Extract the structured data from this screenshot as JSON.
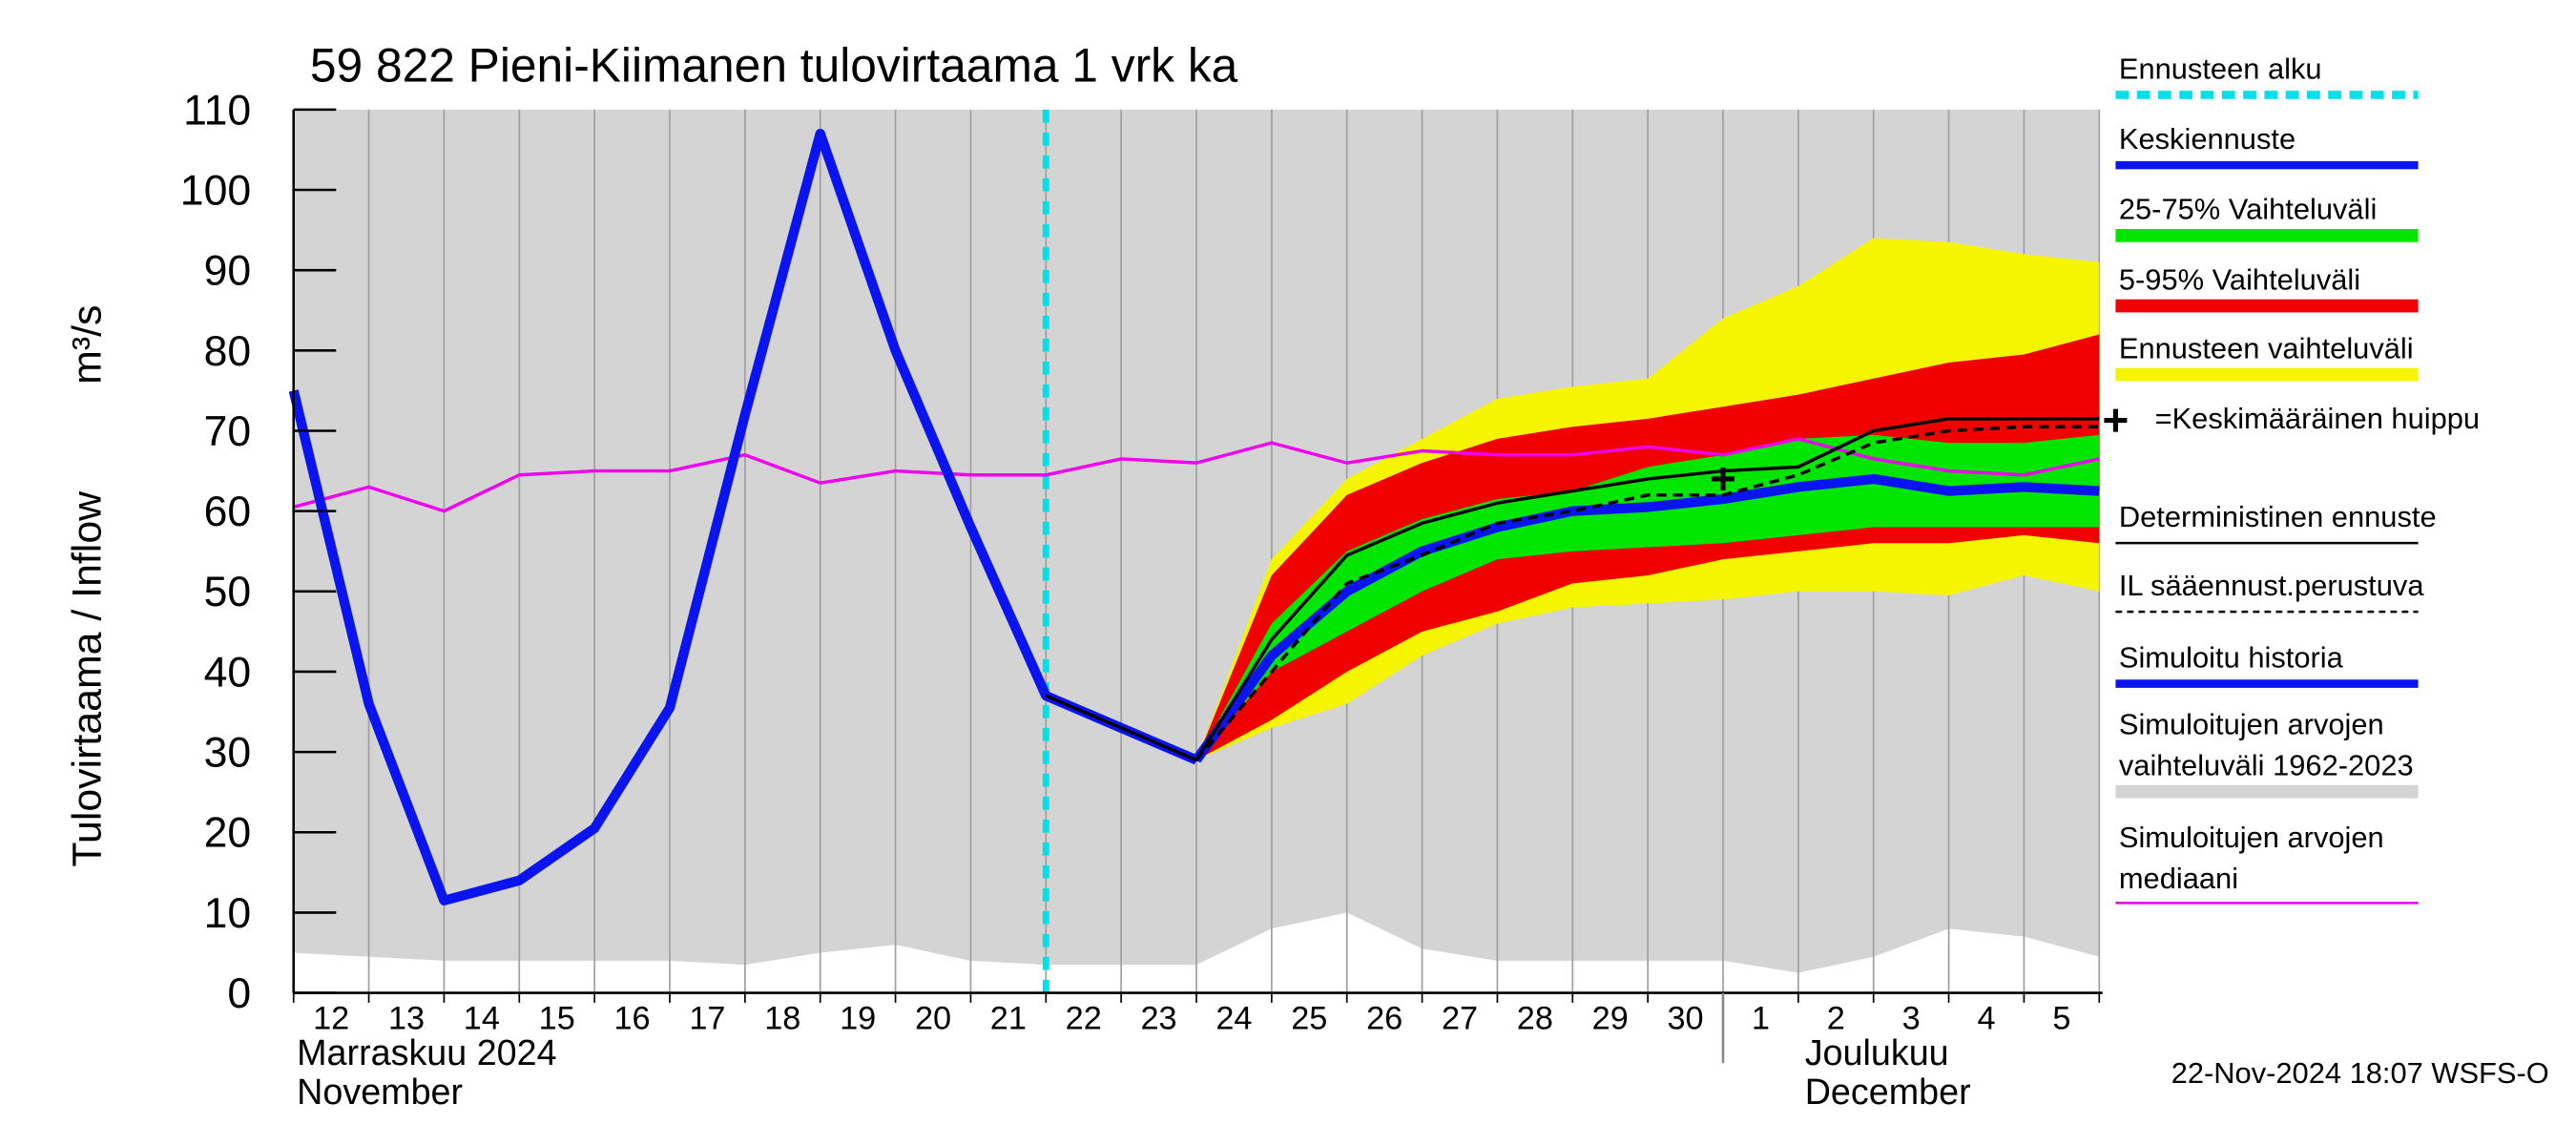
{
  "chart_data": {
    "type": "line",
    "title": "59 822 Pieni-Kiimanen tulovirtaama 1 vrk ka",
    "y_label": "Tulovirtaama / Inflow",
    "y_unit": "m³/s",
    "month_labels": [
      [
        "Marraskuu 2024",
        "November"
      ],
      [
        "Joulukuu",
        "December"
      ]
    ],
    "footer": "22-Nov-2024 18:07 WSFS-O",
    "categories": [
      "12",
      "13",
      "14",
      "15",
      "16",
      "17",
      "18",
      "19",
      "20",
      "21",
      "22",
      "23",
      "24",
      "25",
      "26",
      "27",
      "28",
      "29",
      "30",
      "1",
      "2",
      "3",
      "4",
      "5",
      null
    ],
    "month_start_index": 19,
    "ylim": [
      0,
      110
    ],
    "yticks": [
      0,
      10,
      20,
      30,
      40,
      50,
      60,
      70,
      80,
      90,
      100,
      110
    ],
    "grid": "x",
    "forecast_start": {
      "name": "Ennusteen alku",
      "color": "#00e0e8",
      "x": 10
    },
    "series": [
      {
        "name": "Keskiennuste",
        "kind": "line",
        "color": "#0a14f0",
        "line_width": 6,
        "values": [
          null,
          null,
          null,
          null,
          null,
          null,
          null,
          null,
          null,
          null,
          null,
          null,
          29,
          42,
          50,
          55,
          58,
          60,
          60.5,
          61.5,
          63,
          64,
          62.5,
          63,
          62.5
        ]
      },
      {
        "name": "25-75% Vaihteluväli",
        "kind": "band",
        "color": "#00e600",
        "low": [
          null,
          null,
          null,
          null,
          null,
          null,
          null,
          null,
          null,
          null,
          null,
          null,
          29,
          40,
          45,
          50,
          54,
          55,
          55.5,
          56,
          57,
          58,
          58,
          58,
          58
        ],
        "high": [
          null,
          null,
          null,
          null,
          null,
          null,
          null,
          null,
          null,
          null,
          null,
          null,
          29,
          46,
          55,
          59,
          61.5,
          62.5,
          65.5,
          67,
          69,
          69.5,
          68.5,
          68.5,
          69.5
        ]
      },
      {
        "name": "5-95% Vaihteluväli",
        "kind": "band",
        "color": "#f00000",
        "low": [
          null,
          null,
          null,
          null,
          null,
          null,
          null,
          null,
          null,
          null,
          null,
          null,
          29,
          34,
          40,
          45,
          47.5,
          51,
          52,
          54,
          55,
          56,
          56,
          57,
          56
        ],
        "high": [
          null,
          null,
          null,
          null,
          null,
          null,
          null,
          null,
          null,
          null,
          null,
          null,
          29,
          52,
          62,
          66,
          69,
          70.5,
          71.5,
          73,
          74.5,
          76.5,
          78.5,
          79.5,
          82
        ]
      },
      {
        "name": "Ennusteen vaihteluväli",
        "kind": "band",
        "color": "#f5f500",
        "low": [
          null,
          null,
          null,
          null,
          null,
          null,
          null,
          null,
          null,
          null,
          null,
          null,
          29,
          33,
          36,
          42,
          46,
          48,
          48.5,
          49,
          50,
          50,
          49.5,
          52,
          50
        ],
        "high": [
          null,
          null,
          null,
          null,
          null,
          null,
          null,
          null,
          null,
          null,
          null,
          null,
          29,
          54,
          64,
          69,
          74,
          75.5,
          76.5,
          84,
          88,
          94,
          93.5,
          92,
          91
        ]
      },
      {
        "name": "=Keskimääräinen huippu",
        "kind": "marker",
        "color": "#000000",
        "values": [
          null,
          null,
          null,
          null,
          null,
          null,
          null,
          null,
          null,
          null,
          null,
          null,
          null,
          null,
          null,
          null,
          null,
          null,
          null,
          64,
          null,
          null,
          null,
          null,
          null
        ]
      },
      {
        "name": "Deterministinen ennuste",
        "kind": "line",
        "color": "#000000",
        "line_width": 2,
        "values": [
          null,
          null,
          null,
          null,
          null,
          null,
          null,
          null,
          null,
          null,
          37,
          33,
          29,
          44,
          54.5,
          58.5,
          61,
          62.5,
          64,
          65,
          65.5,
          70,
          71.5,
          71.5,
          71.5
        ]
      },
      {
        "name": "IL sääennust.perustuva",
        "kind": "line",
        "color": "#000000",
        "line_width": 2,
        "dashed": true,
        "values": [
          null,
          null,
          null,
          null,
          null,
          null,
          null,
          null,
          null,
          null,
          null,
          null,
          29,
          40,
          51,
          54.5,
          58.5,
          60,
          62,
          62,
          64.5,
          68.5,
          70,
          70.5,
          70.5
        ]
      },
      {
        "name": "Simuloitu historia",
        "kind": "line",
        "color": "#0a14f0",
        "line_width": 6,
        "values": [
          75,
          36,
          11.5,
          14,
          20.5,
          35.5,
          72,
          107,
          80,
          58,
          37,
          33,
          29,
          null,
          null,
          null,
          null,
          null,
          null,
          null,
          null,
          null,
          null,
          null,
          null
        ]
      },
      {
        "name": "Simuloitujen arvojen vaihteluväli 1962-2023",
        "kind": "band",
        "color": "#d4d4d4",
        "low": [
          5,
          4.5,
          4,
          4,
          4,
          4,
          3.5,
          5,
          6,
          4,
          3.5,
          3.5,
          3.5,
          8,
          10,
          5.5,
          4,
          4,
          4,
          4,
          2.5,
          4.5,
          8,
          7,
          4.5
        ],
        "high": [
          110,
          110,
          110,
          110,
          110,
          110,
          110,
          110,
          110,
          110,
          110,
          110,
          110,
          110,
          110,
          110,
          110,
          110,
          110,
          110,
          110,
          110,
          110,
          110,
          110
        ]
      },
      {
        "name": "Simuloitujen arvojen mediaani",
        "kind": "line",
        "color": "#ee00ee",
        "line_width": 2,
        "values": [
          60.5,
          63,
          60,
          64.5,
          65,
          65,
          67,
          63.5,
          65,
          64.5,
          64.5,
          66.5,
          66,
          68.5,
          66,
          67.5,
          67,
          67,
          68,
          67,
          69,
          66.5,
          65,
          64.5,
          66.5
        ]
      }
    ]
  }
}
